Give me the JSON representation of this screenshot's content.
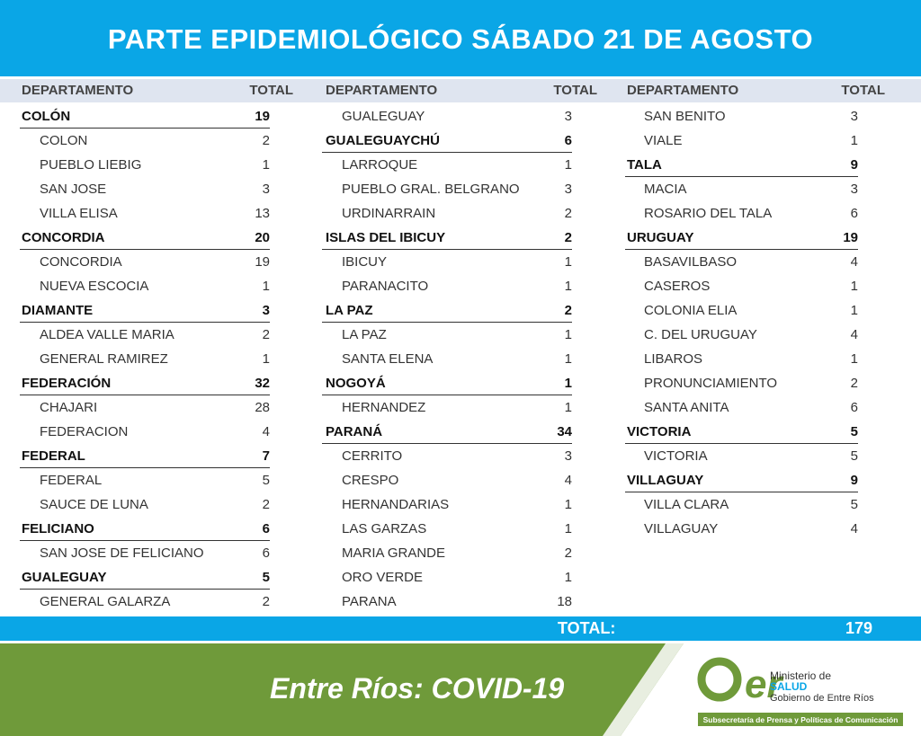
{
  "header": {
    "title": "PARTE EPIDEMIOLÓGICO SÁBADO 21 DE AGOSTO"
  },
  "columns": [
    {
      "header_name": "DEPARTAMENTO",
      "header_total": "TOTAL",
      "groups": [
        {
          "name": "COLÓN",
          "total": 19,
          "localities": [
            {
              "name": "COLON",
              "total": 2
            },
            {
              "name": "PUEBLO LIEBIG",
              "total": 1
            },
            {
              "name": "SAN JOSE",
              "total": 3
            },
            {
              "name": "VILLA ELISA",
              "total": 13
            }
          ]
        },
        {
          "name": "CONCORDIA",
          "total": 20,
          "localities": [
            {
              "name": "CONCORDIA",
              "total": 19
            },
            {
              "name": "NUEVA ESCOCIA",
              "total": 1
            }
          ]
        },
        {
          "name": "DIAMANTE",
          "total": 3,
          "localities": [
            {
              "name": "ALDEA VALLE MARIA",
              "total": 2
            },
            {
              "name": "GENERAL RAMIREZ",
              "total": 1
            }
          ]
        },
        {
          "name": "FEDERACIÓN",
          "total": 32,
          "localities": [
            {
              "name": "CHAJARI",
              "total": 28
            },
            {
              "name": "FEDERACION",
              "total": 4
            }
          ]
        },
        {
          "name": "FEDERAL",
          "total": 7,
          "localities": [
            {
              "name": "FEDERAL",
              "total": 5
            },
            {
              "name": "SAUCE DE LUNA",
              "total": 2
            }
          ]
        },
        {
          "name": "FELICIANO",
          "total": 6,
          "localities": [
            {
              "name": "SAN JOSE DE FELICIANO",
              "total": 6
            }
          ]
        },
        {
          "name": "GUALEGUAY",
          "total": 5,
          "localities": [
            {
              "name": "GENERAL GALARZA",
              "total": 2
            }
          ]
        }
      ]
    },
    {
      "header_name": "DEPARTAMENTO",
      "header_total": "TOTAL",
      "groups": [
        {
          "localities": [
            {
              "name": "GUALEGUAY",
              "total": 3
            }
          ]
        },
        {
          "name": "GUALEGUAYCHÚ",
          "total": 6,
          "localities": [
            {
              "name": "LARROQUE",
              "total": 1
            },
            {
              "name": "PUEBLO GRAL. BELGRANO",
              "total": 3
            },
            {
              "name": "URDINARRAIN",
              "total": 2
            }
          ]
        },
        {
          "name": "ISLAS DEL IBICUY",
          "total": 2,
          "localities": [
            {
              "name": "IBICUY",
              "total": 1
            },
            {
              "name": "PARANACITO",
              "total": 1
            }
          ]
        },
        {
          "name": "LA PAZ",
          "total": 2,
          "localities": [
            {
              "name": "LA PAZ",
              "total": 1
            },
            {
              "name": "SANTA ELENA",
              "total": 1
            }
          ]
        },
        {
          "name": "NOGOYÁ",
          "total": 1,
          "localities": [
            {
              "name": "HERNANDEZ",
              "total": 1
            }
          ]
        },
        {
          "name": "PARANÁ",
          "total": 34,
          "localities": [
            {
              "name": "CERRITO",
              "total": 3
            },
            {
              "name": "CRESPO",
              "total": 4
            },
            {
              "name": "HERNANDARIAS",
              "total": 1
            },
            {
              "name": "LAS GARZAS",
              "total": 1
            },
            {
              "name": "MARIA GRANDE",
              "total": 2
            },
            {
              "name": "ORO VERDE",
              "total": 1
            },
            {
              "name": "PARANA",
              "total": 18
            }
          ]
        }
      ]
    },
    {
      "header_name": "DEPARTAMENTO",
      "header_total": "TOTAL",
      "groups": [
        {
          "localities": [
            {
              "name": "SAN BENITO",
              "total": 3
            },
            {
              "name": "VIALE",
              "total": 1
            }
          ]
        },
        {
          "name": "TALA",
          "total": 9,
          "localities": [
            {
              "name": "MACIA",
              "total": 3
            },
            {
              "name": "ROSARIO DEL TALA",
              "total": 6
            }
          ]
        },
        {
          "name": "URUGUAY",
          "total": 19,
          "localities": [
            {
              "name": "BASAVILBASO",
              "total": 4
            },
            {
              "name": "CASEROS",
              "total": 1
            },
            {
              "name": "COLONIA ELIA",
              "total": 1
            },
            {
              "name": "C. DEL URUGUAY",
              "total": 4
            },
            {
              "name": "LIBAROS",
              "total": 1
            },
            {
              "name": "PRONUNCIAMIENTO",
              "total": 2
            },
            {
              "name": "SANTA ANITA",
              "total": 6
            }
          ]
        },
        {
          "name": "VICTORIA",
          "total": 5,
          "localities": [
            {
              "name": "VICTORIA",
              "total": 5
            }
          ]
        },
        {
          "name": "VILLAGUAY",
          "total": 9,
          "localities": [
            {
              "name": "VILLA CLARA",
              "total": 5
            },
            {
              "name": "VILLAGUAY",
              "total": 4
            }
          ]
        }
      ]
    }
  ],
  "total": {
    "label": "TOTAL:",
    "value": 179
  },
  "footer": {
    "text": "Entre Ríos: COVID-19",
    "logo": {
      "mark": "er",
      "line1": "Ministerio de",
      "line2": "SALUD",
      "line3": "Gobierno de Entre Ríos",
      "strip": "Subsecretaría de Prensa y Políticas de Comunicación"
    }
  }
}
